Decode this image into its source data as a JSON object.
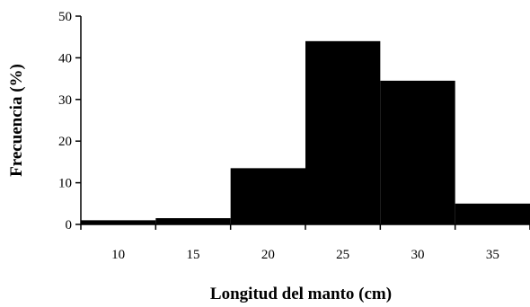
{
  "chart_data": {
    "type": "bar",
    "title": "",
    "xlabel": "Longitud del manto (cm)",
    "ylabel": "Frecuencia (%)",
    "categories": [
      "10",
      "15",
      "20",
      "25",
      "30",
      "35"
    ],
    "values": [
      1,
      1.5,
      13.5,
      44,
      34.5,
      5
    ],
    "ylim": [
      0,
      50
    ],
    "yticks": [
      0,
      10,
      20,
      30,
      40,
      50
    ],
    "grid": false,
    "legend": "none",
    "bar_color": "#000000"
  }
}
